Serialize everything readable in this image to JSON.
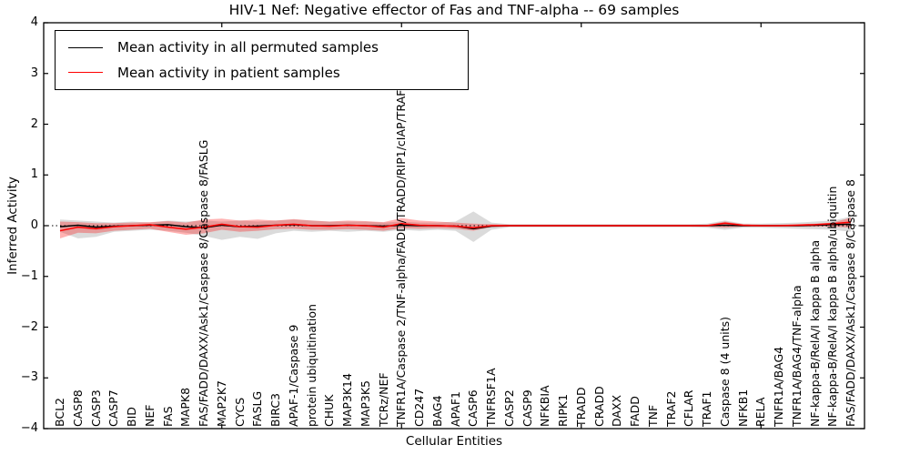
{
  "chart_data": {
    "type": "line",
    "title": "HIV-1 Nef: Negative effector of Fas and TNF-alpha -- 69 samples",
    "xlabel": "Cellular Entities",
    "ylabel": "Inferred Activity",
    "ylim": [
      -4,
      4
    ],
    "yticks": [
      -4,
      -3,
      -2,
      -1,
      0,
      1,
      2,
      3,
      4
    ],
    "x_axis_tick_indices": [
      9,
      19,
      29,
      39
    ],
    "grid": false,
    "legend_position": "upper left",
    "zero_line_style": "dotted",
    "categories": [
      "BCL2",
      "CASP8",
      "CASP3",
      "CASP7",
      "BID",
      "NEF",
      "FAS",
      "MAPK8",
      "FAS/FADD/DAXX/Ask1/Caspase 8/Caspase 8/FASLG",
      "MAP2K7",
      "CYCS",
      "FASLG",
      "BIRC3",
      "APAF-1/Caspase 9",
      "protein ubiquitination",
      "CHUK",
      "MAP3K14",
      "MAP3K5",
      "TCRz/NEF",
      "TNFR1A/Caspase 2/TNF-alpha/FADD/TRADD/RIP1/cIAP/TRAF1",
      "CD247",
      "BAG4",
      "APAF1",
      "CASP6",
      "TNFRSF1A",
      "CASP2",
      "CASP9",
      "NFKBIA",
      "RIPK1",
      "TRADD",
      "CRADD",
      "DAXX",
      "FADD",
      "TNF",
      "TRAF2",
      "CFLAR",
      "TRAF1",
      "Caspase 8 (4 units)",
      "NFKB1",
      "RELA",
      "TNFR1A/BAG4",
      "TNFR1A/BAG4/TNF-alpha",
      "NF-kappa-B/RelA/I kappa B alpha",
      "NF-kappa-B/RelA/I kappa B alpha/ubiquitin",
      "FAS/FADD/DAXX/Ask1/Caspase 8/Caspase 8"
    ],
    "series": [
      {
        "name": "Mean activity in all permuted samples",
        "color": "#000000",
        "values": [
          -0.02,
          0.01,
          -0.03,
          -0.01,
          0.0,
          0.01,
          0.02,
          -0.02,
          -0.04,
          0.01,
          -0.02,
          -0.01,
          0.01,
          0.02,
          0.0,
          0.0,
          0.01,
          0.0,
          -0.01,
          0.01,
          0.0,
          0.0,
          -0.01,
          -0.06,
          -0.01,
          0.0,
          0.0,
          0.0,
          0.0,
          0.0,
          0.0,
          0.0,
          0.0,
          0.0,
          0.0,
          0.0,
          0.0,
          0.01,
          0.0,
          0.0,
          0.0,
          0.0,
          0.01,
          0.02,
          0.03
        ]
      },
      {
        "name": "Mean activity in patient samples",
        "color": "#ff0000",
        "values": [
          -0.1,
          -0.03,
          -0.06,
          -0.02,
          0.0,
          0.02,
          -0.03,
          -0.07,
          -0.03,
          0.03,
          -0.02,
          -0.03,
          0.01,
          0.03,
          0.0,
          -0.01,
          0.01,
          0.0,
          -0.03,
          0.04,
          0.01,
          0.0,
          -0.01,
          -0.04,
          0.0,
          0.0,
          0.0,
          0.0,
          0.0,
          0.0,
          0.0,
          0.0,
          0.0,
          0.0,
          0.0,
          0.0,
          0.0,
          0.05,
          0.01,
          0.0,
          0.0,
          0.01,
          0.02,
          0.04,
          0.07
        ]
      }
    ],
    "bands": [
      {
        "name": "Permuted samples activity range",
        "color": "#999999",
        "opacity": 0.35,
        "upper": [
          0.12,
          0.1,
          0.08,
          0.06,
          0.08,
          0.06,
          0.1,
          0.08,
          0.1,
          0.08,
          0.1,
          0.08,
          0.1,
          0.12,
          0.1,
          0.08,
          0.08,
          0.08,
          0.06,
          0.08,
          0.06,
          0.06,
          0.08,
          0.28,
          0.06,
          0.03,
          0.03,
          0.03,
          0.03,
          0.03,
          0.03,
          0.03,
          0.03,
          0.03,
          0.03,
          0.03,
          0.04,
          0.1,
          0.04,
          0.04,
          0.05,
          0.06,
          0.08,
          0.1,
          0.18
        ],
        "lower": [
          -0.12,
          -0.25,
          -0.22,
          -0.12,
          -0.1,
          -0.08,
          -0.1,
          -0.14,
          -0.2,
          -0.28,
          -0.22,
          -0.26,
          -0.15,
          -0.1,
          -0.12,
          -0.1,
          -0.12,
          -0.1,
          -0.12,
          -0.08,
          -0.1,
          -0.08,
          -0.1,
          -0.32,
          -0.08,
          -0.03,
          -0.03,
          -0.03,
          -0.03,
          -0.03,
          -0.03,
          -0.03,
          -0.03,
          -0.03,
          -0.03,
          -0.03,
          -0.04,
          -0.08,
          -0.04,
          -0.04,
          -0.05,
          -0.06,
          -0.07,
          -0.08,
          -0.12
        ]
      },
      {
        "name": "Patient samples activity range",
        "color": "#ff0000",
        "opacity": 0.3,
        "upper": [
          0.08,
          0.07,
          0.05,
          0.05,
          0.06,
          0.07,
          0.09,
          0.06,
          0.12,
          0.14,
          0.1,
          0.12,
          0.1,
          0.13,
          0.1,
          0.08,
          0.1,
          0.09,
          0.07,
          0.15,
          0.1,
          0.08,
          0.06,
          0.04,
          0.03,
          0.02,
          0.02,
          0.02,
          0.02,
          0.02,
          0.02,
          0.02,
          0.02,
          0.02,
          0.02,
          0.02,
          0.02,
          0.08,
          0.03,
          0.02,
          0.02,
          0.03,
          0.04,
          0.06,
          0.16
        ],
        "lower": [
          -0.25,
          -0.14,
          -0.15,
          -0.1,
          -0.08,
          -0.06,
          -0.12,
          -0.18,
          -0.15,
          -0.08,
          -0.12,
          -0.1,
          -0.07,
          -0.06,
          -0.08,
          -0.08,
          -0.07,
          -0.08,
          -0.1,
          -0.05,
          -0.06,
          -0.05,
          -0.06,
          -0.1,
          -0.03,
          -0.02,
          -0.02,
          -0.02,
          -0.02,
          -0.02,
          -0.02,
          -0.02,
          -0.02,
          -0.02,
          -0.02,
          -0.02,
          -0.02,
          -0.04,
          -0.02,
          -0.02,
          -0.02,
          -0.02,
          -0.02,
          -0.02,
          -0.04
        ]
      }
    ]
  }
}
